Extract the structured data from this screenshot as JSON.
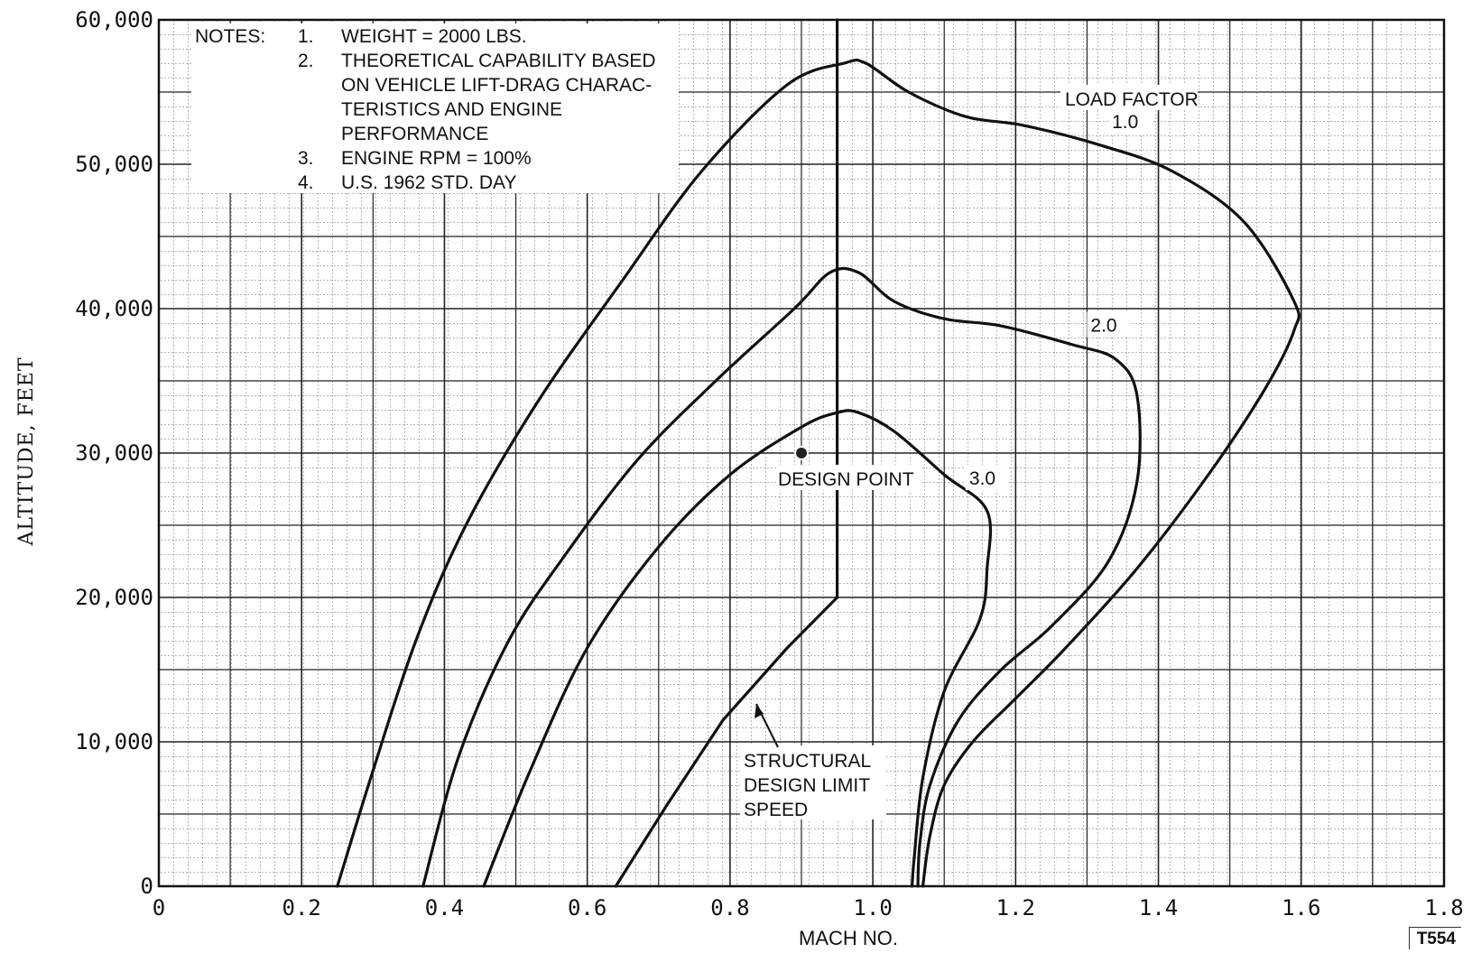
{
  "chart_data": {
    "type": "line",
    "xlabel": "MACH NO.",
    "ylabel": "ALTITUDE, FEET",
    "xlim": [
      0,
      1.8
    ],
    "ylim": [
      0,
      60000
    ],
    "x_ticks": [
      "0",
      "0.2",
      "0.4",
      "0.6",
      "0.8",
      "1.0",
      "1.2",
      "1.4",
      "1.6",
      "1.8"
    ],
    "y_ticks": [
      "0",
      "10,000",
      "20,000",
      "30,000",
      "40,000",
      "50,000",
      "60,000"
    ],
    "grid": true,
    "legend_title": "LOAD FACTOR",
    "series": [
      {
        "name": "1.0",
        "points": [
          [
            0.25,
            0
          ],
          [
            0.3,
            8000
          ],
          [
            0.36,
            17000
          ],
          [
            0.43,
            25000
          ],
          [
            0.53,
            33500
          ],
          [
            0.65,
            42000
          ],
          [
            0.76,
            49500
          ],
          [
            0.88,
            55500
          ],
          [
            0.96,
            57000
          ],
          [
            0.99,
            57000
          ],
          [
            1.05,
            55000
          ],
          [
            1.13,
            53300
          ],
          [
            1.21,
            52700
          ],
          [
            1.32,
            51300
          ],
          [
            1.42,
            49500
          ],
          [
            1.52,
            46000
          ],
          [
            1.59,
            40500
          ],
          [
            1.59,
            38500
          ],
          [
            1.55,
            34500
          ],
          [
            1.47,
            28500
          ],
          [
            1.37,
            22000
          ],
          [
            1.27,
            16500
          ],
          [
            1.2,
            13000
          ],
          [
            1.14,
            10000
          ],
          [
            1.1,
            7000
          ],
          [
            1.08,
            3500
          ],
          [
            1.07,
            0
          ]
        ]
      },
      {
        "name": "2.0",
        "points": [
          [
            0.37,
            0
          ],
          [
            0.42,
            9000
          ],
          [
            0.49,
            17000
          ],
          [
            0.57,
            23000
          ],
          [
            0.67,
            29500
          ],
          [
            0.78,
            35000
          ],
          [
            0.89,
            40000
          ],
          [
            0.94,
            42500
          ],
          [
            0.98,
            42500
          ],
          [
            1.03,
            40500
          ],
          [
            1.1,
            39300
          ],
          [
            1.18,
            38800
          ],
          [
            1.28,
            37500
          ],
          [
            1.34,
            36500
          ],
          [
            1.37,
            34000
          ],
          [
            1.37,
            28000
          ],
          [
            1.33,
            22500
          ],
          [
            1.25,
            18000
          ],
          [
            1.18,
            15000
          ],
          [
            1.12,
            11500
          ],
          [
            1.08,
            7000
          ],
          [
            1.066,
            3000
          ],
          [
            1.063,
            0
          ]
        ]
      },
      {
        "name": "3.0",
        "points": [
          [
            0.455,
            0
          ],
          [
            0.52,
            8000
          ],
          [
            0.6,
            16500
          ],
          [
            0.7,
            23500
          ],
          [
            0.8,
            28500
          ],
          [
            0.9,
            31800
          ],
          [
            0.95,
            32800
          ],
          [
            0.98,
            32800
          ],
          [
            1.03,
            31500
          ],
          [
            1.1,
            28500
          ],
          [
            1.16,
            26000
          ],
          [
            1.16,
            22000
          ],
          [
            1.15,
            18500
          ],
          [
            1.1,
            13500
          ],
          [
            1.07,
            7500
          ],
          [
            1.058,
            2000
          ],
          [
            1.055,
            0
          ]
        ]
      },
      {
        "name": "STRUCTURAL DESIGN LIMIT SPEED",
        "points": [
          [
            0.64,
            0
          ],
          [
            0.71,
            5500
          ],
          [
            0.79,
            11500
          ],
          [
            0.88,
            16500
          ],
          [
            0.95,
            20000
          ],
          [
            0.95,
            60000
          ]
        ]
      }
    ],
    "design_point": {
      "label": "DESIGN POINT",
      "x": 0.9,
      "y": 30000
    },
    "curve_labels": [
      "1.0",
      "2.0",
      "3.0"
    ],
    "annotation": "STRUCTURAL\nDESIGN LIMIT\nSPEED"
  },
  "notes": {
    "heading": "NOTES:",
    "items": [
      {
        "num": "1.",
        "lines": [
          "WEIGHT = 2000 LBS."
        ]
      },
      {
        "num": "2.",
        "lines": [
          "THEORETICAL CAPABILITY BASED",
          "ON VEHICLE LIFT-DRAG CHARAC-",
          "TERISTICS AND ENGINE",
          "PERFORMANCE"
        ]
      },
      {
        "num": "3.",
        "lines": [
          "ENGINE RPM = 100%"
        ]
      },
      {
        "num": "4.",
        "lines": [
          "U.S. 1962 STD. DAY"
        ]
      }
    ]
  },
  "figure_id": "T554"
}
